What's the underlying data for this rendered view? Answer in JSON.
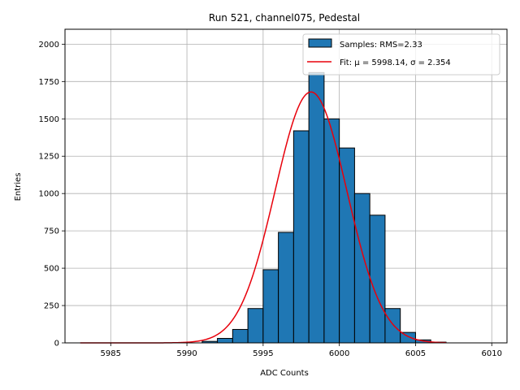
{
  "chart_data": {
    "type": "bar",
    "title": "Run 521, channel075, Pedestal",
    "xlabel": "ADC Counts",
    "ylabel": "Entries",
    "xlim": [
      5982,
      6011
    ],
    "ylim": [
      0,
      2100
    ],
    "xticks": [
      5985,
      5990,
      5995,
      6000,
      6005,
      6010
    ],
    "yticks": [
      0,
      250,
      500,
      750,
      1000,
      1250,
      1500,
      1750,
      2000
    ],
    "grid": true,
    "legend_position": "top-right",
    "colors": {
      "bar_fill": "#1f77b4",
      "bar_edge": "#000000",
      "fit_line": "#e8000b",
      "grid": "#b0b0b0"
    },
    "histogram": {
      "name": "Samples: RMS=2.33",
      "bin_width": 1,
      "bins": [
        {
          "left": 5991,
          "count": 10
        },
        {
          "left": 5992,
          "count": 30
        },
        {
          "left": 5993,
          "count": 90
        },
        {
          "left": 5994,
          "count": 230
        },
        {
          "left": 5995,
          "count": 490
        },
        {
          "left": 5996,
          "count": 740
        },
        {
          "left": 5997,
          "count": 1420
        },
        {
          "left": 5998,
          "count": 1810
        },
        {
          "left": 5999,
          "count": 1500
        },
        {
          "left": 6000,
          "count": 1305
        },
        {
          "left": 6001,
          "count": 1000
        },
        {
          "left": 6002,
          "count": 855
        },
        {
          "left": 6003,
          "count": 230
        },
        {
          "left": 6004,
          "count": 70
        },
        {
          "left": 6005,
          "count": 20
        },
        {
          "left": 6006,
          "count": 5
        }
      ]
    },
    "fit": {
      "name": "Fit: μ = 5998.14, σ = 2.354",
      "mu": 5998.14,
      "sigma": 2.354,
      "amplitude": 1680,
      "x_range": [
        5983,
        6007
      ]
    }
  }
}
